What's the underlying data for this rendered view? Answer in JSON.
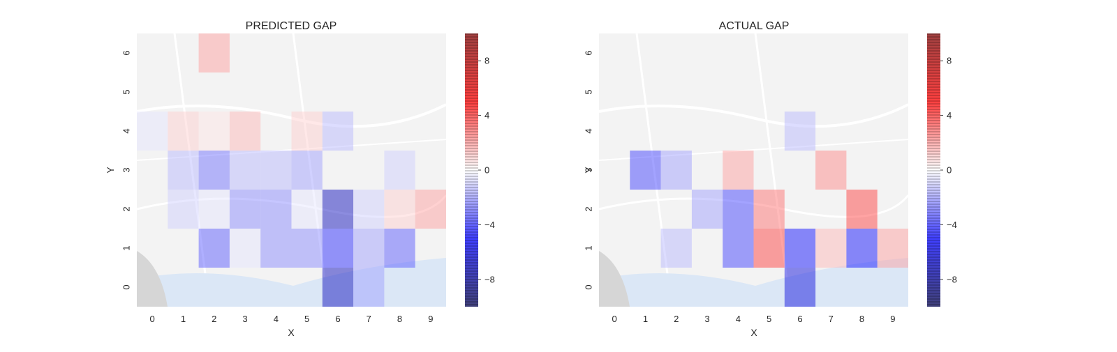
{
  "chart_data": [
    {
      "type": "heatmap",
      "title": "PREDICTED GAP",
      "xlabel": "X",
      "ylabel": "Y",
      "x_ticks": [
        "0",
        "1",
        "2",
        "3",
        "4",
        "5",
        "6",
        "7",
        "8",
        "9"
      ],
      "y_ticks": [
        "0",
        "1",
        "2",
        "3",
        "4",
        "5",
        "6"
      ],
      "vlim": [
        -10,
        10
      ],
      "colormap": "seismic",
      "background": "street map (Porto)",
      "colorbar_ticks": [
        "8",
        "4",
        "0",
        "−4",
        "−8"
      ],
      "colorbar_tick_values": [
        8,
        4,
        0,
        -4,
        -8
      ],
      "cells": [
        {
          "x": 2,
          "y": 6,
          "v": 2.0
        },
        {
          "x": 0,
          "y": 4,
          "v": -0.5
        },
        {
          "x": 1,
          "y": 4,
          "v": 1.0
        },
        {
          "x": 2,
          "y": 4,
          "v": 0.5
        },
        {
          "x": 3,
          "y": 4,
          "v": 1.5
        },
        {
          "x": 5,
          "y": 4,
          "v": 1.0
        },
        {
          "x": 6,
          "y": 4,
          "v": -1.5
        },
        {
          "x": 1,
          "y": 3,
          "v": -1.5
        },
        {
          "x": 2,
          "y": 3,
          "v": -3.0
        },
        {
          "x": 3,
          "y": 3,
          "v": -1.5
        },
        {
          "x": 4,
          "y": 3,
          "v": -1.5
        },
        {
          "x": 5,
          "y": 3,
          "v": -2.0
        },
        {
          "x": 8,
          "y": 3,
          "v": -1.0
        },
        {
          "x": 1,
          "y": 2,
          "v": -1.0
        },
        {
          "x": 2,
          "y": 2,
          "v": -0.5
        },
        {
          "x": 3,
          "y": 2,
          "v": -2.5
        },
        {
          "x": 4,
          "y": 2,
          "v": -2.5
        },
        {
          "x": 5,
          "y": 2,
          "v": -0.5
        },
        {
          "x": 6,
          "y": 2,
          "v": -7.0
        },
        {
          "x": 7,
          "y": 2,
          "v": -1.0
        },
        {
          "x": 8,
          "y": 2,
          "v": 1.0
        },
        {
          "x": 9,
          "y": 2,
          "v": 2.0
        },
        {
          "x": 2,
          "y": 1,
          "v": -3.5
        },
        {
          "x": 3,
          "y": 1,
          "v": -0.5
        },
        {
          "x": 4,
          "y": 1,
          "v": -2.5
        },
        {
          "x": 5,
          "y": 1,
          "v": -2.5
        },
        {
          "x": 6,
          "y": 1,
          "v": -4.5
        },
        {
          "x": 7,
          "y": 1,
          "v": -2.0
        },
        {
          "x": 8,
          "y": 1,
          "v": -3.5
        },
        {
          "x": 6,
          "y": 0,
          "v": -7.0
        },
        {
          "x": 7,
          "y": 0,
          "v": -2.0
        }
      ]
    },
    {
      "type": "heatmap",
      "title": "ACTUAL GAP",
      "xlabel": "X",
      "ylabel": "Y",
      "x_ticks": [
        "0",
        "1",
        "2",
        "3",
        "4",
        "5",
        "6",
        "7",
        "8",
        "9"
      ],
      "y_ticks": [
        "0",
        "1",
        "2",
        "3",
        "4",
        "5",
        "6"
      ],
      "vlim": [
        -10,
        10
      ],
      "colormap": "seismic",
      "background": "street map (Porto)",
      "colorbar_ticks": [
        "8",
        "4",
        "0",
        "−4",
        "−8"
      ],
      "colorbar_tick_values": [
        8,
        4,
        0,
        -4,
        -8
      ],
      "cells": [
        {
          "x": 6,
          "y": 4,
          "v": -1.5
        },
        {
          "x": 1,
          "y": 3,
          "v": -4.0
        },
        {
          "x": 2,
          "y": 3,
          "v": -2.0
        },
        {
          "x": 4,
          "y": 3,
          "v": 2.0
        },
        {
          "x": 7,
          "y": 3,
          "v": 2.5
        },
        {
          "x": 3,
          "y": 2,
          "v": -2.0
        },
        {
          "x": 4,
          "y": 2,
          "v": -4.0
        },
        {
          "x": 5,
          "y": 2,
          "v": 3.0
        },
        {
          "x": 8,
          "y": 2,
          "v": 4.0
        },
        {
          "x": 2,
          "y": 1,
          "v": -1.5
        },
        {
          "x": 4,
          "y": 1,
          "v": -4.0
        },
        {
          "x": 5,
          "y": 1,
          "v": 4.0
        },
        {
          "x": 6,
          "y": 1,
          "v": -5.0
        },
        {
          "x": 7,
          "y": 1,
          "v": 1.5
        },
        {
          "x": 8,
          "y": 1,
          "v": -5.0
        },
        {
          "x": 9,
          "y": 1,
          "v": 2.0
        },
        {
          "x": 6,
          "y": 0,
          "v": -6.0
        }
      ]
    }
  ]
}
